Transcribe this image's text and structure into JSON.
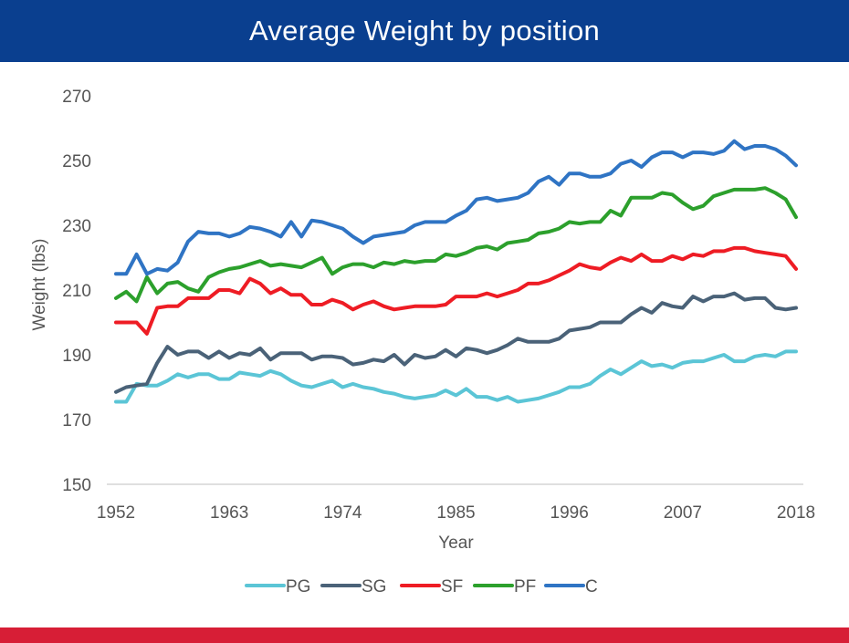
{
  "chart_data": {
    "type": "line",
    "title": "Average Weight by position",
    "xlabel": "Year",
    "ylabel": "Weight (lbs)",
    "xlim": [
      1952,
      2018
    ],
    "ylim": [
      150,
      270
    ],
    "y_ticks": [
      150,
      170,
      190,
      210,
      230,
      250,
      270
    ],
    "x_ticks": [
      1952,
      1963,
      1974,
      1985,
      1996,
      2007,
      2018
    ],
    "grid": false,
    "legend_position": "bottom",
    "x": [
      1952,
      1953,
      1954,
      1955,
      1956,
      1957,
      1958,
      1959,
      1960,
      1961,
      1962,
      1963,
      1964,
      1965,
      1966,
      1967,
      1968,
      1969,
      1970,
      1971,
      1972,
      1973,
      1974,
      1975,
      1976,
      1977,
      1978,
      1979,
      1980,
      1981,
      1982,
      1983,
      1984,
      1985,
      1986,
      1987,
      1988,
      1989,
      1990,
      1991,
      1992,
      1993,
      1994,
      1995,
      1996,
      1997,
      1998,
      1999,
      2000,
      2001,
      2002,
      2003,
      2004,
      2005,
      2006,
      2007,
      2008,
      2009,
      2010,
      2011,
      2012,
      2013,
      2014,
      2015,
      2016,
      2017,
      2018
    ],
    "series": [
      {
        "name": "PG",
        "color": "#5bc5d6",
        "values": [
          175.5,
          175.5,
          181,
          180.5,
          180.5,
          182,
          184,
          183,
          184,
          184,
          182.5,
          182.5,
          184.5,
          184,
          183.5,
          185,
          184,
          182,
          180.5,
          180,
          181,
          182,
          180,
          181,
          180,
          179.5,
          178.5,
          178,
          177,
          176.5,
          177,
          177.5,
          179,
          177.5,
          179.5,
          177,
          177,
          176,
          177,
          175.5,
          176,
          176.5,
          177.5,
          178.5,
          180,
          180,
          181,
          183.5,
          185.5,
          184,
          186,
          188,
          186.5,
          187,
          186,
          187.5,
          188,
          188,
          189,
          190,
          188,
          188,
          189.5,
          190,
          189.5,
          191,
          191
        ]
      },
      {
        "name": "SG",
        "color": "#4a6278",
        "values": [
          178.5,
          180,
          180.5,
          181,
          187.5,
          192.5,
          190,
          191,
          191,
          189,
          191,
          189,
          190.5,
          190,
          192,
          188.5,
          190.5,
          190.5,
          190.5,
          188.5,
          189.5,
          189.5,
          189,
          187,
          187.5,
          188.5,
          188,
          190,
          187,
          190,
          189,
          189.5,
          191.5,
          189.5,
          192,
          191.5,
          190.5,
          191.5,
          193,
          195,
          194,
          194,
          194,
          195,
          197.5,
          198,
          198.5,
          200,
          200,
          200,
          202.5,
          204.5,
          203,
          206,
          205,
          204.5,
          208,
          206.5,
          208,
          208,
          209,
          207,
          207.5,
          207.5,
          204.5,
          204,
          204.5
        ]
      },
      {
        "name": "SF",
        "color": "#ee1c24",
        "values": [
          200,
          200,
          200,
          196.5,
          204.5,
          205,
          205,
          207.5,
          207.5,
          207.5,
          210,
          210,
          209,
          213.5,
          212,
          209,
          210.5,
          208.5,
          208.5,
          205.5,
          205.5,
          207,
          206,
          204,
          205.5,
          206.5,
          205,
          204,
          204.5,
          205,
          205,
          205,
          205.5,
          208,
          208,
          208,
          209,
          208,
          209,
          210,
          212,
          212,
          213,
          214.5,
          216,
          218,
          217,
          216.5,
          218.5,
          220,
          219,
          221,
          219,
          219,
          220.5,
          219.5,
          221,
          220.5,
          222,
          222,
          223,
          223,
          222,
          221.5,
          221,
          220.5,
          216.5
        ]
      },
      {
        "name": "PF",
        "color": "#2ca02c",
        "values": [
          207.5,
          209.5,
          206.5,
          214,
          209,
          212,
          212.5,
          210.5,
          209.5,
          214,
          215.5,
          216.5,
          217,
          218,
          219,
          217.5,
          218,
          217.5,
          217,
          218.5,
          220,
          215,
          217,
          218,
          218,
          217,
          218.5,
          218,
          219,
          218.5,
          219,
          219,
          221,
          220.5,
          221.5,
          223,
          223.5,
          222.5,
          224.5,
          225,
          225.5,
          227.5,
          228,
          229,
          231,
          230.5,
          231,
          231,
          234.5,
          233,
          238.5,
          238.5,
          238.5,
          240,
          239.5,
          237,
          235,
          236,
          239,
          240,
          241,
          241,
          241,
          241.5,
          240,
          238,
          232.5
        ]
      },
      {
        "name": "C",
        "color": "#2f74c4",
        "values": [
          215,
          215,
          221,
          215,
          216.5,
          216,
          218.5,
          225,
          228,
          227.5,
          227.5,
          226.5,
          227.5,
          229.5,
          229,
          228,
          226.5,
          231,
          226.5,
          231.5,
          231,
          230,
          229,
          226.5,
          224.5,
          226.5,
          227,
          227.5,
          228,
          230,
          231,
          231,
          231,
          233,
          234.5,
          238,
          238.5,
          237.5,
          238,
          238.5,
          240,
          243.5,
          245,
          242.5,
          246,
          246,
          245,
          245,
          246,
          249,
          250,
          248,
          251,
          252.5,
          252.5,
          251,
          252.5,
          252.5,
          252,
          253,
          256,
          253.5,
          254.5,
          254.5,
          253.5,
          251.5,
          248.5
        ]
      }
    ]
  }
}
